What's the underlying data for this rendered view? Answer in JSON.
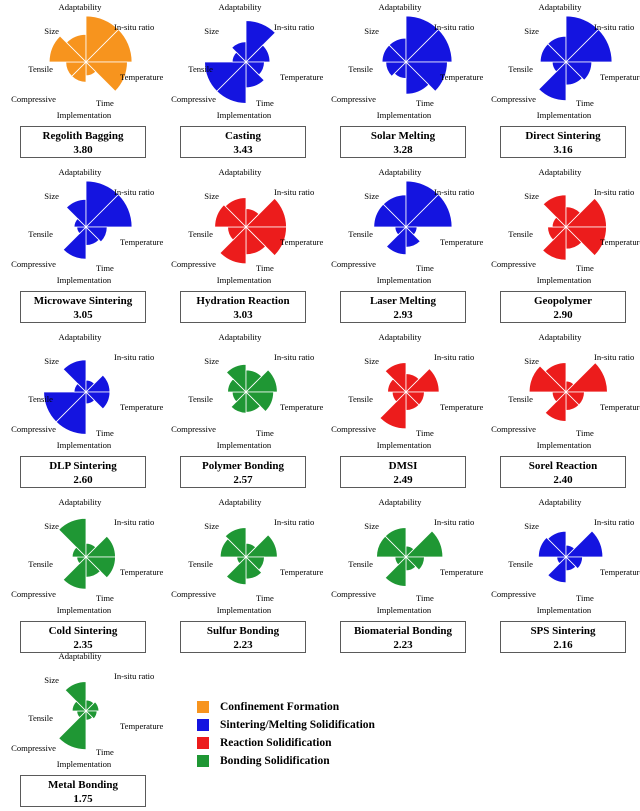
{
  "figure": {
    "background": "#ffffff",
    "description": "Small-multiple rose (fan) charts ranking lunar regolith solidification/formation methods"
  },
  "legend": {
    "items": [
      {
        "label": "Confinement Formation",
        "color": "#F7941E"
      },
      {
        "label": "Sintering/Melting Solidification",
        "color": "#1414E0"
      },
      {
        "label": "Reaction Solidification",
        "color": "#EC1C1C"
      },
      {
        "label": "Bonding Solidification",
        "color": "#1F9734"
      }
    ]
  },
  "chart_data": {
    "type": "rose-small-multiples",
    "grid": false,
    "legend_position": "bottom-center",
    "scale_max": 5,
    "attributes": [
      "Adaptability",
      "In-situ ratio",
      "Temperature",
      "Time",
      "Implementation",
      "Compressive",
      "Tensile",
      "Size"
    ],
    "sector_start_deg": {
      "Adaptability": 315,
      "In-situ ratio": 0,
      "Temperature": 45,
      "Time": 90,
      "Implementation": 135,
      "Compressive": 180,
      "Tensile": 225,
      "Size": 270
    },
    "charts": [
      {
        "name": "Regolith Bagging",
        "score": "3.80",
        "category": "Confinement Formation",
        "color": "#F7941E",
        "values": [
          3.0,
          5.0,
          5.0,
          4.5,
          1.5,
          2.2,
          2.2,
          4.0
        ]
      },
      {
        "name": "Casting",
        "score": "3.43",
        "category": "Sintering/Melting Solidification",
        "color": "#1414E0",
        "values": [
          2.2,
          4.5,
          2.6,
          2.0,
          2.8,
          4.5,
          4.5,
          1.5
        ]
      },
      {
        "name": "Solar Melting",
        "score": "3.28",
        "category": "Sintering/Melting Solidification",
        "color": "#1414E0",
        "values": [
          2.6,
          5.0,
          5.0,
          4.5,
          3.5,
          1.8,
          2.2,
          2.6
        ]
      },
      {
        "name": "Direct Sintering",
        "score": "3.16",
        "category": "Sintering/Melting Solidification",
        "color": "#1414E0",
        "values": [
          2.8,
          5.0,
          5.0,
          2.8,
          2.5,
          4.2,
          1.5,
          2.8
        ]
      },
      {
        "name": "Microwave Sintering",
        "score": "3.05",
        "category": "Sintering/Melting Solidification",
        "color": "#1414E0",
        "values": [
          3.0,
          5.0,
          5.0,
          2.3,
          2.0,
          3.5,
          1.0,
          1.3
        ]
      },
      {
        "name": "Hydration Reaction",
        "score": "3.03",
        "category": "Reaction Solidification",
        "color": "#EC1C1C",
        "values": [
          3.2,
          2.0,
          4.4,
          4.4,
          3.0,
          4.0,
          2.0,
          3.4
        ]
      },
      {
        "name": "Laser Melting",
        "score": "2.93",
        "category": "Sintering/Melting Solidification",
        "color": "#1414E0",
        "values": [
          3.5,
          5.0,
          5.0,
          1.2,
          2.2,
          3.0,
          1.2,
          3.5
        ]
      },
      {
        "name": "Geopolymer",
        "score": "2.90",
        "category": "Reaction Solidification",
        "color": "#EC1C1C",
        "values": [
          3.5,
          2.2,
          4.4,
          4.4,
          2.4,
          3.6,
          2.0,
          1.5
        ]
      },
      {
        "name": "DLP Sintering",
        "score": "2.60",
        "category": "Sintering/Melting Solidification",
        "color": "#1414E0",
        "values": [
          3.5,
          1.3,
          2.6,
          2.6,
          1.3,
          4.6,
          4.6,
          1.3
        ]
      },
      {
        "name": "Polymer Bonding",
        "score": "2.57",
        "category": "Bonding Solidification",
        "color": "#1F9734",
        "values": [
          3.0,
          2.4,
          3.4,
          3.0,
          2.2,
          2.3,
          1.5,
          2.0
        ]
      },
      {
        "name": "DMSI",
        "score": "2.49",
        "category": "Reaction Solidification",
        "color": "#EC1C1C",
        "values": [
          3.2,
          2.0,
          3.6,
          2.0,
          2.0,
          4.0,
          1.5,
          2.0
        ]
      },
      {
        "name": "Sorel Reaction",
        "score": "2.40",
        "category": "Reaction Solidification",
        "color": "#EC1C1C",
        "values": [
          3.2,
          1.2,
          4.5,
          2.0,
          2.0,
          3.2,
          1.5,
          4.0
        ]
      },
      {
        "name": "Cold Sintering",
        "score": "2.35",
        "category": "Bonding Solidification",
        "color": "#1F9734",
        "values": [
          4.2,
          1.5,
          3.2,
          3.2,
          2.2,
          3.5,
          1.0,
          1.5
        ]
      },
      {
        "name": "Sulfur Bonding",
        "score": "2.23",
        "category": "Bonding Solidification",
        "color": "#1F9734",
        "values": [
          3.2,
          1.5,
          3.4,
          2.0,
          2.4,
          3.0,
          1.0,
          2.8
        ]
      },
      {
        "name": "Biomaterial Bonding",
        "score": "2.23",
        "category": "Bonding Solidification",
        "color": "#1F9734",
        "values": [
          3.2,
          1.2,
          4.0,
          2.0,
          1.5,
          3.2,
          1.2,
          3.2
        ]
      },
      {
        "name": "SPS Sintering",
        "score": "2.16",
        "category": "Sintering/Melting Solidification",
        "color": "#1414E0",
        "values": [
          2.8,
          1.3,
          4.0,
          1.8,
          1.5,
          2.8,
          1.0,
          3.0
        ]
      },
      {
        "name": "Metal Bonding",
        "score": "1.75",
        "category": "Bonding Solidification",
        "color": "#1F9734",
        "values": [
          3.2,
          1.2,
          1.4,
          1.2,
          1.0,
          4.2,
          1.0,
          1.5
        ]
      }
    ]
  }
}
